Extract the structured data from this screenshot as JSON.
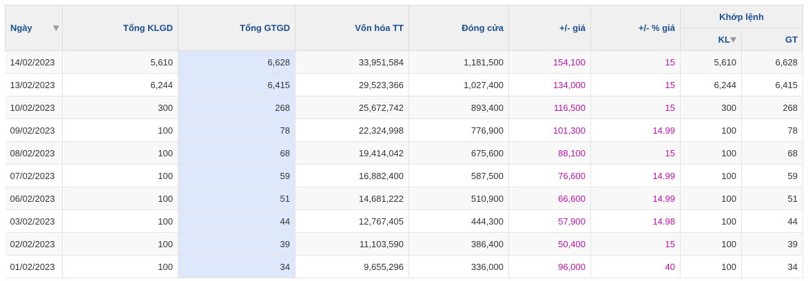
{
  "header": {
    "columns": [
      "Ngày",
      "Tổng KLGD",
      "Tổng GTGD",
      "Vốn hóa TT",
      "Đóng cửa",
      "+/- giá",
      "+/- % giá"
    ],
    "group": "Khớp lệnh",
    "subcolumns": [
      "KL",
      "GT"
    ]
  },
  "table": {
    "rows": [
      [
        "14/02/2023",
        "5,610",
        "6,628",
        "33,951,584",
        "1,181,500",
        "154,100",
        "15",
        "5,610",
        "6,628"
      ],
      [
        "13/02/2023",
        "6,244",
        "6,415",
        "29,523,366",
        "1,027,400",
        "134,000",
        "15",
        "6,244",
        "6,415"
      ],
      [
        "10/02/2023",
        "300",
        "268",
        "25,672,742",
        "893,400",
        "116,500",
        "15",
        "300",
        "268"
      ],
      [
        "09/02/2023",
        "100",
        "78",
        "22,324,998",
        "776,900",
        "101,300",
        "14.99",
        "100",
        "78"
      ],
      [
        "08/02/2023",
        "100",
        "68",
        "19,414,042",
        "675,600",
        "88,100",
        "15",
        "100",
        "68"
      ],
      [
        "07/02/2023",
        "100",
        "59",
        "16,882,400",
        "587,500",
        "76,600",
        "14.99",
        "100",
        "59"
      ],
      [
        "06/02/2023",
        "100",
        "51",
        "14,681,222",
        "510,900",
        "66,600",
        "14.99",
        "100",
        "51"
      ],
      [
        "03/02/2023",
        "100",
        "44",
        "12,767,405",
        "444,300",
        "57,900",
        "14.98",
        "100",
        "44"
      ],
      [
        "02/02/2023",
        "100",
        "39",
        "11,103,590",
        "386,400",
        "50,400",
        "15",
        "100",
        "39"
      ],
      [
        "01/02/2023",
        "100",
        "34",
        "9,655,296",
        "336,000",
        "96,000",
        "40",
        "100",
        "34"
      ]
    ]
  }
}
